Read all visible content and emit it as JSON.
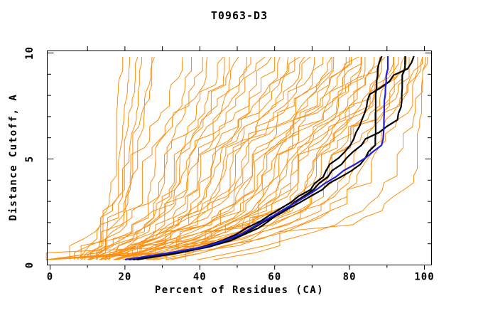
{
  "chart_data": {
    "type": "line",
    "title": "T0963-D3",
    "xlabel": "Percent of Residues (CA)",
    "ylabel": "Distance Cutoff, A",
    "xlim": [
      0,
      102
    ],
    "ylim": [
      0,
      10.1
    ],
    "grid": false,
    "legend": "none",
    "x_major_ticks": [
      0,
      20,
      40,
      60,
      80,
      100
    ],
    "x_minor_ticks": [
      10,
      30,
      50,
      70,
      90
    ],
    "x_top_ticks": [
      10,
      20,
      30,
      40,
      50,
      60,
      70,
      80,
      90,
      100
    ],
    "y_major_ticks": [
      0,
      5,
      10
    ],
    "y_minor_ticks": [
      1,
      2,
      3,
      4,
      6,
      7,
      8,
      9
    ],
    "colors": {
      "orange": "#ff8e0d",
      "black": "#000000",
      "blue": "#2020dd"
    },
    "orange_anchor_cutoffs": [
      0.25,
      5,
      9.9
    ],
    "orange_series": [
      [
        5,
        17,
        19
      ],
      [
        6,
        18,
        21
      ],
      [
        10,
        19,
        23
      ],
      [
        11,
        20,
        25
      ],
      [
        12,
        21,
        27
      ],
      [
        10,
        22,
        28
      ],
      [
        7,
        22,
        35
      ],
      [
        9,
        25,
        38
      ],
      [
        11,
        27,
        40
      ],
      [
        12,
        29,
        43
      ],
      [
        8,
        30,
        45
      ],
      [
        13,
        32,
        47
      ],
      [
        14,
        33,
        48
      ],
      [
        10,
        34,
        50
      ],
      [
        9,
        35,
        52
      ],
      [
        12,
        36,
        54
      ],
      [
        14,
        38,
        56
      ],
      [
        11,
        39,
        58
      ],
      [
        15,
        40,
        60
      ],
      [
        13,
        42,
        62
      ],
      [
        16,
        43,
        63
      ],
      [
        12,
        44,
        65
      ],
      [
        17,
        45,
        66
      ],
      [
        14,
        46,
        68
      ],
      [
        18,
        48,
        69
      ],
      [
        15,
        49,
        70
      ],
      [
        13,
        50,
        72
      ],
      [
        19,
        52,
        74
      ],
      [
        16,
        53,
        75
      ],
      [
        20,
        54,
        76
      ],
      [
        17,
        55,
        78
      ],
      [
        21,
        56,
        79
      ],
      [
        18,
        57,
        80
      ],
      [
        22,
        58,
        81
      ],
      [
        19,
        60,
        82
      ],
      [
        23,
        61,
        83
      ],
      [
        20,
        62,
        84
      ],
      [
        24,
        63,
        85
      ],
      [
        21,
        64,
        86
      ],
      [
        25,
        65,
        87
      ],
      [
        22,
        66,
        88
      ],
      [
        26,
        68,
        89
      ],
      [
        23,
        69,
        90
      ],
      [
        27,
        70,
        91
      ],
      [
        24,
        71,
        92
      ],
      [
        28,
        72,
        93
      ],
      [
        25,
        74,
        94
      ],
      [
        30,
        75,
        95
      ],
      [
        26,
        76,
        96
      ],
      [
        32,
        78,
        97
      ],
      [
        28,
        80,
        98
      ],
      [
        35,
        83,
        99
      ],
      [
        30,
        86,
        100
      ],
      [
        40,
        92,
        100
      ],
      [
        45,
        97,
        100
      ]
    ],
    "black_series": [
      {
        "y": [
          0.25,
          0.7,
          1,
          1.5,
          2,
          2.5,
          3,
          3.5,
          4,
          4.5,
          5,
          5.6,
          7.9,
          8.6,
          9.0,
          9.9
        ],
        "x": [
          22,
          38,
          45,
          52,
          57,
          62,
          67,
          72,
          76,
          81,
          84,
          86.5,
          86.7,
          87.2,
          87.5,
          88.5
        ]
      },
      {
        "y": [
          0.25,
          0.7,
          1,
          1.5,
          2,
          2.5,
          3,
          3.5,
          4,
          4.5,
          5,
          5.5,
          6,
          6.4,
          6.8,
          7.3,
          8,
          9,
          9.4,
          9.9
        ],
        "x": [
          23,
          39,
          46,
          53,
          58,
          62,
          66,
          70,
          73,
          76,
          79,
          82,
          85,
          89,
          92.5,
          93.2,
          93.8,
          94.3,
          94.8,
          95.2
        ]
      },
      {
        "y": [
          0.25,
          0.7,
          1,
          1.5,
          2,
          2.5,
          3,
          3.5,
          4,
          4.3,
          4.8,
          5.3,
          5.9,
          6.6,
          7.4,
          8.2,
          8.5,
          9.0,
          9.3,
          9.9
        ],
        "x": [
          21,
          37,
          44,
          50,
          55.5,
          60,
          64.5,
          69,
          72,
          74,
          74.5,
          79,
          81,
          82.5,
          84,
          86,
          90,
          92,
          96,
          97
        ]
      }
    ],
    "blue_series": [
      {
        "y": [
          0.25,
          0.7,
          1,
          1.5,
          2,
          2.5,
          3,
          3.5,
          4,
          4.5,
          5,
          5.4,
          5.8,
          7,
          8,
          9,
          9.9
        ],
        "x": [
          20,
          37,
          44.5,
          51.5,
          56.5,
          61.5,
          66,
          70.5,
          74.5,
          79,
          83.5,
          87,
          89.3,
          89.5,
          89.6,
          89.8,
          90
        ]
      }
    ]
  }
}
